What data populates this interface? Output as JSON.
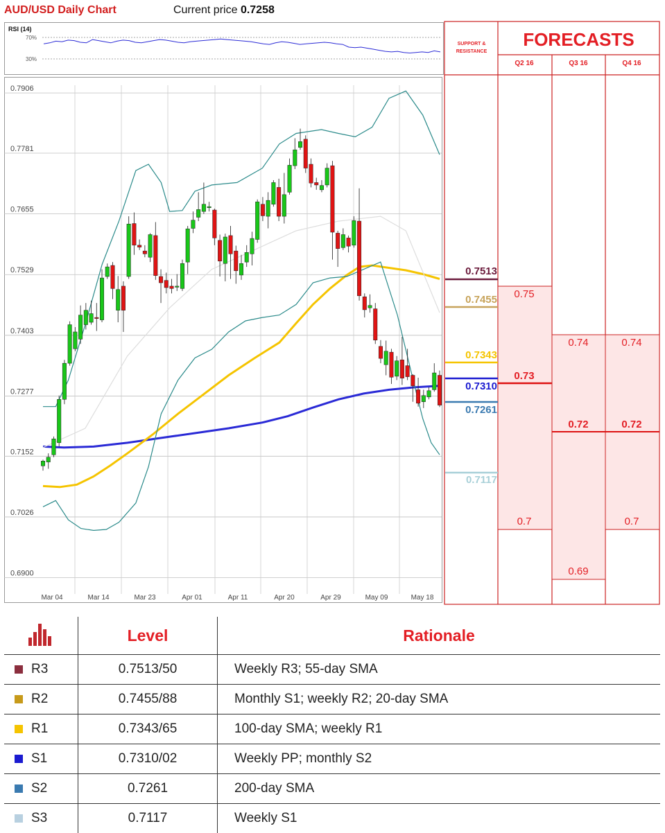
{
  "header": {
    "title": "AUD/USD Daily Chart",
    "price_prefix": "Current price",
    "price_value": "0.7258"
  },
  "rsi": {
    "title": "RSI (14)",
    "tick_high": "70%",
    "tick_low": "30%",
    "values": [
      58,
      60,
      63,
      62,
      65,
      64,
      61,
      60,
      66,
      64,
      62,
      60,
      63,
      65,
      64,
      61,
      60,
      62,
      64,
      66,
      65,
      63,
      61,
      60,
      62,
      63,
      64,
      65,
      66,
      67,
      66,
      65,
      64,
      63,
      62,
      60,
      58,
      57,
      60,
      62,
      61,
      59,
      57,
      58,
      59,
      60,
      61,
      60,
      58,
      57,
      52,
      51,
      52,
      50,
      48,
      46,
      44,
      43,
      44,
      42,
      41,
      42,
      43,
      42,
      45,
      43
    ]
  },
  "chart_data": {
    "type": "candlestick",
    "title": "AUD/USD Daily Chart",
    "y_ticks": [
      "0.7906",
      "0.7781",
      "0.7655",
      "0.7529",
      "0.7403",
      "0.7277",
      "0.7152",
      "0.7026",
      "0.6900"
    ],
    "ylim": [
      0.6895,
      0.7922
    ],
    "x_ticks": [
      "Mar 04",
      "Mar 14",
      "Mar 23",
      "Apr 01",
      "Apr 11",
      "Apr 20",
      "Apr 29",
      "May 09",
      "May 18"
    ],
    "grid": true,
    "candles": [
      [
        0.7132,
        0.7142,
        0.7122,
        0.7145
      ],
      [
        0.714,
        0.715,
        0.7126,
        0.7158
      ],
      [
        0.7155,
        0.7188,
        0.715,
        0.7193
      ],
      [
        0.718,
        0.727,
        0.7172,
        0.7278
      ],
      [
        0.727,
        0.7345,
        0.726,
        0.7352
      ],
      [
        0.7345,
        0.7425,
        0.734,
        0.7432
      ],
      [
        0.7375,
        0.741,
        0.737,
        0.742
      ],
      [
        0.7395,
        0.7445,
        0.7385,
        0.7465
      ],
      [
        0.7425,
        0.7455,
        0.7415,
        0.747
      ],
      [
        0.743,
        0.7448,
        0.7425,
        0.7475
      ],
      [
        0.744,
        0.7438,
        0.7412,
        0.747
      ],
      [
        0.7435,
        0.7522,
        0.743,
        0.754
      ],
      [
        0.7525,
        0.7545,
        0.752,
        0.7552
      ],
      [
        0.7548,
        0.75,
        0.7478,
        0.7555
      ],
      [
        0.7455,
        0.7498,
        0.743,
        0.7526
      ],
      [
        0.7505,
        0.7455,
        0.741,
        0.7515
      ],
      [
        0.7525,
        0.7634,
        0.752,
        0.765
      ],
      [
        0.7635,
        0.759,
        0.757,
        0.7658
      ],
      [
        0.759,
        0.7586,
        0.758,
        0.7602
      ],
      [
        0.7578,
        0.7572,
        0.7565,
        0.759
      ],
      [
        0.7565,
        0.7612,
        0.7555,
        0.7615
      ],
      [
        0.761,
        0.7527,
        0.7518,
        0.7638
      ],
      [
        0.7525,
        0.7512,
        0.747,
        0.754
      ],
      [
        0.7517,
        0.7502,
        0.749,
        0.7533
      ],
      [
        0.7505,
        0.75,
        0.749,
        0.752
      ],
      [
        0.7505,
        0.7505,
        0.7495,
        0.753
      ],
      [
        0.75,
        0.7552,
        0.7495,
        0.756
      ],
      [
        0.7555,
        0.7624,
        0.753,
        0.763
      ],
      [
        0.7625,
        0.7642,
        0.7615,
        0.766
      ],
      [
        0.7648,
        0.7664,
        0.764,
        0.77
      ],
      [
        0.766,
        0.7675,
        0.7655,
        0.772
      ],
      [
        0.767,
        0.767,
        0.766,
        0.768
      ],
      [
        0.7663,
        0.7605,
        0.759,
        0.7666
      ],
      [
        0.76,
        0.7557,
        0.7525,
        0.7612
      ],
      [
        0.7552,
        0.7607,
        0.7515,
        0.7614
      ],
      [
        0.761,
        0.7572,
        0.752,
        0.763
      ],
      [
        0.7578,
        0.7537,
        0.751,
        0.7589
      ],
      [
        0.7528,
        0.7552,
        0.7518,
        0.757
      ],
      [
        0.7555,
        0.7575,
        0.7545,
        0.759
      ],
      [
        0.7572,
        0.7604,
        0.7548,
        0.7618
      ],
      [
        0.7602,
        0.768,
        0.7595,
        0.7685
      ],
      [
        0.7675,
        0.7651,
        0.764,
        0.769
      ],
      [
        0.765,
        0.7683,
        0.7625,
        0.77
      ],
      [
        0.7675,
        0.772,
        0.767,
        0.7725
      ],
      [
        0.771,
        0.765,
        0.764,
        0.7728
      ],
      [
        0.765,
        0.7695,
        0.7635,
        0.774
      ],
      [
        0.77,
        0.7756,
        0.7695,
        0.777
      ],
      [
        0.7755,
        0.7788,
        0.7748,
        0.7812
      ],
      [
        0.7793,
        0.7805,
        0.7788,
        0.7832
      ],
      [
        0.781,
        0.775,
        0.774,
        0.7818
      ],
      [
        0.7758,
        0.7719,
        0.771,
        0.777
      ],
      [
        0.772,
        0.7715,
        0.7705,
        0.773
      ],
      [
        0.7705,
        0.7714,
        0.77,
        0.7725
      ],
      [
        0.7715,
        0.775,
        0.771,
        0.776
      ],
      [
        0.7755,
        0.7617,
        0.756,
        0.7765
      ],
      [
        0.7615,
        0.7583,
        0.7545,
        0.762
      ],
      [
        0.7585,
        0.7612,
        0.758,
        0.7625
      ],
      [
        0.7605,
        0.7588,
        0.7575,
        0.761
      ],
      [
        0.759,
        0.7641,
        0.7585,
        0.765
      ],
      [
        0.764,
        0.7485,
        0.7475,
        0.7708
      ],
      [
        0.7483,
        0.7456,
        0.744,
        0.749
      ],
      [
        0.746,
        0.7465,
        0.745,
        0.7488
      ],
      [
        0.7458,
        0.7393,
        0.7385,
        0.747
      ],
      [
        0.738,
        0.7355,
        0.7345,
        0.7393
      ],
      [
        0.7342,
        0.737,
        0.732,
        0.7392
      ],
      [
        0.7368,
        0.7316,
        0.7302,
        0.7375
      ],
      [
        0.7318,
        0.735,
        0.731,
        0.736
      ],
      [
        0.7352,
        0.7314,
        0.73,
        0.74
      ],
      [
        0.734,
        0.7317,
        0.731,
        0.7375
      ],
      [
        0.732,
        0.7298,
        0.7265,
        0.7322
      ],
      [
        0.729,
        0.7262,
        0.7255,
        0.7315
      ],
      [
        0.7265,
        0.7278,
        0.7252,
        0.729
      ],
      [
        0.7275,
        0.7288,
        0.727,
        0.7295
      ],
      [
        0.729,
        0.7325,
        0.7286,
        0.7345
      ],
      [
        0.732,
        0.7258,
        0.7254,
        0.733
      ]
    ],
    "series": [
      {
        "name": "200-day SMA",
        "color": "#2a2ad6",
        "points": [
          [
            0,
            0.7172
          ],
          [
            5,
            0.717
          ],
          [
            12,
            0.7172
          ],
          [
            20,
            0.718
          ],
          [
            28,
            0.719
          ],
          [
            36,
            0.72
          ],
          [
            44,
            0.721
          ],
          [
            52,
            0.7222
          ],
          [
            58,
            0.7235
          ],
          [
            64,
            0.7253
          ],
          [
            70,
            0.727
          ],
          [
            76,
            0.7282
          ],
          [
            82,
            0.729
          ],
          [
            88,
            0.7295
          ],
          [
            94,
            0.7298
          ]
        ]
      },
      {
        "name": "100-day SMA",
        "color": "#f5c400",
        "points": [
          [
            0,
            0.709
          ],
          [
            4,
            0.7088
          ],
          [
            8,
            0.7093
          ],
          [
            12,
            0.711
          ],
          [
            16,
            0.7133
          ],
          [
            20,
            0.7158
          ],
          [
            26,
            0.7197
          ],
          [
            32,
            0.724
          ],
          [
            38,
            0.728
          ],
          [
            44,
            0.732
          ],
          [
            50,
            0.7355
          ],
          [
            56,
            0.7388
          ],
          [
            60,
            0.7428
          ],
          [
            64,
            0.7467
          ],
          [
            68,
            0.75
          ],
          [
            72,
            0.7528
          ],
          [
            75,
            0.7545
          ],
          [
            78,
            0.7548
          ],
          [
            82,
            0.7543
          ],
          [
            86,
            0.7538
          ],
          [
            90,
            0.753
          ],
          [
            94,
            0.752
          ]
        ]
      },
      {
        "name": "upper band",
        "color": "#2a8a8a",
        "points": [
          [
            0,
            0.7255
          ],
          [
            3,
            0.7255
          ],
          [
            6,
            0.731
          ],
          [
            10,
            0.7425
          ],
          [
            14,
            0.755
          ],
          [
            18,
            0.764
          ],
          [
            22,
            0.7745
          ],
          [
            25,
            0.7758
          ],
          [
            28,
            0.772
          ],
          [
            30,
            0.766
          ],
          [
            33,
            0.7662
          ],
          [
            36,
            0.7702
          ],
          [
            40,
            0.7715
          ],
          [
            46,
            0.772
          ],
          [
            52,
            0.775
          ],
          [
            56,
            0.78
          ],
          [
            60,
            0.7822
          ],
          [
            66,
            0.783
          ],
          [
            70,
            0.7822
          ],
          [
            74,
            0.7815
          ],
          [
            78,
            0.7835
          ],
          [
            82,
            0.7895
          ],
          [
            86,
            0.791
          ],
          [
            90,
            0.786
          ],
          [
            94,
            0.7778
          ]
        ]
      },
      {
        "name": "lower band",
        "color": "#2a8a8a",
        "points": [
          [
            0,
            0.7047
          ],
          [
            3,
            0.706
          ],
          [
            6,
            0.702
          ],
          [
            9,
            0.7002
          ],
          [
            12,
            0.6998
          ],
          [
            15,
            0.7
          ],
          [
            18,
            0.7015
          ],
          [
            22,
            0.7055
          ],
          [
            25,
            0.713
          ],
          [
            28,
            0.724
          ],
          [
            32,
            0.731
          ],
          [
            36,
            0.7356
          ],
          [
            40,
            0.7374
          ],
          [
            44,
            0.741
          ],
          [
            48,
            0.7433
          ],
          [
            52,
            0.744
          ],
          [
            56,
            0.7445
          ],
          [
            60,
            0.7467
          ],
          [
            64,
            0.7512
          ],
          [
            68,
            0.7522
          ],
          [
            72,
            0.7525
          ],
          [
            76,
            0.754
          ],
          [
            80,
            0.7555
          ],
          [
            84,
            0.7445
          ],
          [
            88,
            0.73
          ],
          [
            90,
            0.723
          ],
          [
            92,
            0.718
          ],
          [
            94,
            0.7155
          ]
        ]
      },
      {
        "name": "middle",
        "color": "#dddddd",
        "points": [
          [
            0,
            0.717
          ],
          [
            10,
            0.721
          ],
          [
            20,
            0.736
          ],
          [
            30,
            0.746
          ],
          [
            40,
            0.754
          ],
          [
            50,
            0.758
          ],
          [
            60,
            0.762
          ],
          [
            70,
            0.764
          ],
          [
            80,
            0.765
          ],
          [
            86,
            0.762
          ],
          [
            94,
            0.745
          ]
        ]
      }
    ],
    "levels": [
      {
        "label": "0.7513",
        "value": 0.7513,
        "color": "#6b1a3b"
      },
      {
        "label": "0.7455",
        "value": 0.7455,
        "color": "#c7a35a"
      },
      {
        "label": "0.7343",
        "value": 0.7343,
        "color": "#f5c400"
      },
      {
        "label": "0.7310",
        "value": 0.731,
        "color": "#1a1ad0"
      },
      {
        "label": "0.7261",
        "value": 0.7261,
        "color": "#3a7ab0"
      },
      {
        "label": "0.7117",
        "value": 0.7117,
        "color": "#a8d0d8"
      }
    ]
  },
  "forecasts": {
    "title": "FORECASTS",
    "sr_title": "SUPPORT & RESISTANCE",
    "quarters": [
      "Q2 16",
      "Q3 16",
      "Q4 16"
    ],
    "q2": {
      "high": "0.75",
      "mid": "0.73",
      "low": "0.7"
    },
    "q3": {
      "high": "0.74",
      "mid": "0.72",
      "low": "0.69"
    },
    "q4": {
      "high": "0.74",
      "mid": "0.72",
      "low": "0.7"
    }
  },
  "table": {
    "col_level": "Level",
    "col_rationale": "Rationale",
    "rows": [
      {
        "name": "R3",
        "level": "0.7513/50",
        "rationale": "Weekly R3; 55-day SMA",
        "color": "#8b2e3e"
      },
      {
        "name": "R2",
        "level": "0.7455/88",
        "rationale": "Monthly S1; weekly R2; 20-day SMA",
        "color": "#c79a1a"
      },
      {
        "name": "R1",
        "level": "0.7343/65",
        "rationale": "100-day SMA; weekly R1",
        "color": "#f5c400"
      },
      {
        "name": "S1",
        "level": "0.7310/02",
        "rationale": "Weekly PP; monthly S2",
        "color": "#1a1ad0"
      },
      {
        "name": "S2",
        "level": "0.7261",
        "rationale": "200-day SMA",
        "color": "#3a7ab0"
      },
      {
        "name": "S3",
        "level": "0.7117",
        "rationale": "Weekly S1",
        "color": "#b8d0e0"
      }
    ]
  }
}
